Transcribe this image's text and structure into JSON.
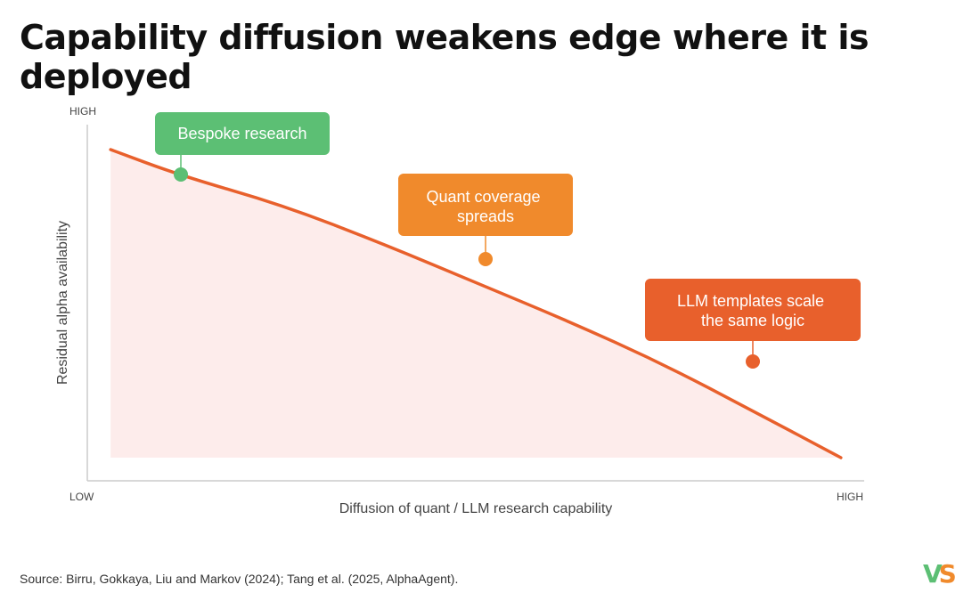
{
  "title": "Capability diffusion weakens edge where it is deployed",
  "source": "Source: Birru, Gokkaya, Liu and Markov (2024); Tang et al. (2025, AlphaAgent).",
  "logo": {
    "v": "V",
    "s": "S"
  },
  "colors": {
    "curve": "#e8602c",
    "fill": "#fdeceb",
    "green": "#5cbf74",
    "orange": "#f08a2c",
    "red_orange": "#e8602c",
    "axis": "#cccccc",
    "label": "#444444"
  },
  "chart_data": {
    "type": "area",
    "title": "Capability diffusion weakens edge where it is deployed",
    "xlabel": "Diffusion of quant / LLM research capability",
    "ylabel": "Residual alpha availability",
    "x_ticks": {
      "low": "LOW",
      "high": "HIGH"
    },
    "y_ticks": {
      "high": "HIGH"
    },
    "xlim": [
      0,
      1
    ],
    "ylim": [
      0,
      1
    ],
    "grid": false,
    "legend": "none",
    "curve": {
      "x": [
        0.03,
        0.12,
        0.25,
        0.38,
        0.5,
        0.62,
        0.74,
        0.86,
        0.97
      ],
      "y": [
        0.95,
        0.87,
        0.78,
        0.66,
        0.54,
        0.42,
        0.29,
        0.14,
        0.0
      ]
    },
    "annotations": [
      {
        "label": "Bespoke research",
        "x": 0.125,
        "y": 0.86,
        "color": "#5cbf74"
      },
      {
        "label": "Quant coverage spreads",
        "x": 0.53,
        "y": 0.6,
        "color": "#f08a2c"
      },
      {
        "label": "LLM templates scale the same logic",
        "x": 0.88,
        "y": 0.28,
        "color": "#e8602c"
      }
    ]
  }
}
